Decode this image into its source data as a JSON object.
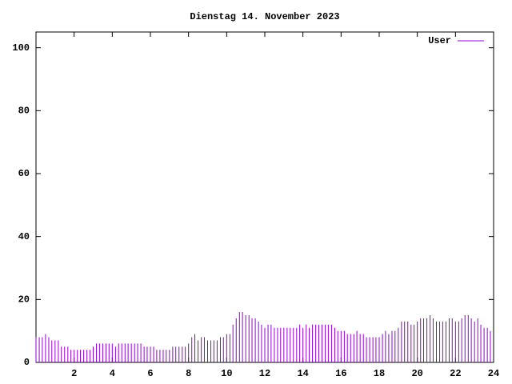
{
  "chart_data": {
    "type": "impulses",
    "title": "Dienstag 14. November 2023",
    "x": [
      0,
      0.17,
      0.33,
      0.5,
      0.67,
      0.83,
      1,
      1.17,
      1.33,
      1.5,
      1.67,
      1.83,
      2,
      2.17,
      2.33,
      2.5,
      2.67,
      2.83,
      3,
      3.17,
      3.33,
      3.5,
      3.67,
      3.83,
      4,
      4.17,
      4.33,
      4.5,
      4.67,
      4.83,
      5,
      5.17,
      5.33,
      5.5,
      5.67,
      5.83,
      6,
      6.17,
      6.33,
      6.5,
      6.67,
      6.83,
      7,
      7.17,
      7.33,
      7.5,
      7.67,
      7.83,
      8,
      8.17,
      8.33,
      8.5,
      8.67,
      8.83,
      9,
      9.17,
      9.33,
      9.5,
      9.67,
      9.83,
      10,
      10.17,
      10.33,
      10.5,
      10.67,
      10.83,
      11,
      11.17,
      11.33,
      11.5,
      11.67,
      11.83,
      12,
      12.17,
      12.33,
      12.5,
      12.67,
      12.83,
      13,
      13.17,
      13.33,
      13.5,
      13.67,
      13.83,
      14,
      14.17,
      14.33,
      14.5,
      14.67,
      14.83,
      15,
      15.17,
      15.33,
      15.5,
      15.67,
      15.83,
      16,
      16.17,
      16.33,
      16.5,
      16.67,
      16.83,
      17,
      17.17,
      17.33,
      17.5,
      17.67,
      17.83,
      18,
      18.17,
      18.33,
      18.5,
      18.67,
      18.83,
      19,
      19.17,
      19.33,
      19.5,
      19.67,
      19.83,
      20,
      20.17,
      20.33,
      20.5,
      20.67,
      20.83,
      21,
      21.17,
      21.33,
      21.5,
      21.67,
      21.83,
      22,
      22.17,
      22.33,
      22.5,
      22.67,
      22.83,
      23,
      23.17,
      23.33,
      23.5,
      23.67,
      23.83
    ],
    "series": [
      {
        "name": "User",
        "color": "#9400d3",
        "values": [
          8,
          8,
          8,
          9,
          8,
          7,
          7,
          7,
          5,
          5,
          5,
          4,
          4,
          4,
          4,
          4,
          4,
          4,
          5,
          6,
          6,
          6,
          6,
          6,
          6,
          5,
          6,
          6,
          6,
          6,
          6,
          6,
          6,
          6,
          5,
          5,
          5,
          5,
          4,
          4,
          4,
          4,
          4,
          5,
          5,
          5,
          5,
          5,
          6,
          8,
          9,
          7,
          8,
          8,
          7,
          7,
          7,
          7,
          8,
          8,
          9,
          9,
          12,
          14,
          16,
          16,
          15,
          15,
          14,
          14,
          13,
          12,
          11,
          12,
          12,
          11,
          11,
          11,
          11,
          11,
          11,
          11,
          11,
          12,
          11,
          12,
          11,
          12,
          12,
          12,
          12,
          12,
          12,
          12,
          11,
          10,
          10,
          10,
          9,
          9,
          9,
          10,
          9,
          9,
          8,
          8,
          8,
          8,
          8,
          9,
          10,
          9,
          10,
          10,
          11,
          13,
          13,
          13,
          12,
          12,
          13,
          14,
          14,
          14,
          15,
          14,
          13,
          13,
          13,
          13,
          14,
          14,
          13,
          13,
          14,
          15,
          15,
          14,
          13,
          14,
          12,
          11,
          11,
          10
        ]
      }
    ],
    "xlim": [
      0,
      24
    ],
    "xticks": [
      2,
      4,
      6,
      8,
      10,
      12,
      14,
      16,
      18,
      20,
      22,
      24
    ],
    "ylim": [
      0,
      105
    ],
    "yticks": [
      0,
      20,
      40,
      60,
      80,
      100
    ]
  }
}
